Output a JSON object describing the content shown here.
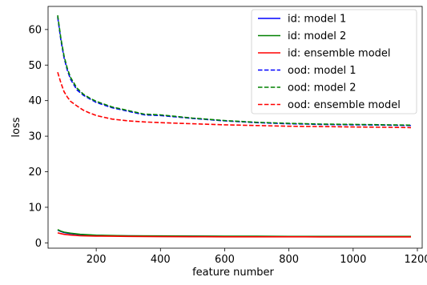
{
  "chart_data": {
    "type": "line",
    "title": "",
    "xlabel": "feature number",
    "ylabel": "loss",
    "xlim": [
      50,
      1215
    ],
    "ylim": [
      -1.5,
      66.5
    ],
    "xticks": [
      200,
      400,
      600,
      800,
      1000,
      1200
    ],
    "yticks": [
      0,
      10,
      20,
      30,
      40,
      50,
      60
    ],
    "grid": false,
    "legend_position": "upper right",
    "series": [
      {
        "name": "id: model 1",
        "style": "solid",
        "color": "#0000ff",
        "x": [
          80,
          90,
          100,
          120,
          150,
          200,
          250,
          300,
          400,
          500,
          600,
          700,
          800,
          900,
          1000,
          1100,
          1180
        ],
        "y": [
          3.6,
          3.2,
          2.9,
          2.6,
          2.3,
          2.1,
          2.0,
          1.95,
          1.9,
          1.85,
          1.8,
          1.8,
          1.8,
          1.78,
          1.78,
          1.78,
          1.78
        ]
      },
      {
        "name": "id: model 2",
        "style": "solid",
        "color": "#008000",
        "x": [
          80,
          90,
          100,
          120,
          150,
          200,
          250,
          300,
          400,
          500,
          600,
          700,
          800,
          900,
          1000,
          1100,
          1180
        ],
        "y": [
          3.7,
          3.3,
          3.0,
          2.7,
          2.4,
          2.15,
          2.05,
          2.0,
          1.95,
          1.9,
          1.85,
          1.85,
          1.82,
          1.8,
          1.8,
          1.8,
          1.8
        ]
      },
      {
        "name": "id: ensemble model",
        "style": "solid",
        "color": "#ff0000",
        "x": [
          80,
          90,
          100,
          120,
          150,
          200,
          250,
          300,
          400,
          500,
          600,
          700,
          800,
          900,
          1000,
          1100,
          1180
        ],
        "y": [
          2.8,
          2.6,
          2.4,
          2.2,
          2.0,
          1.9,
          1.85,
          1.8,
          1.75,
          1.72,
          1.7,
          1.7,
          1.7,
          1.68,
          1.68,
          1.68,
          1.68
        ]
      },
      {
        "name": "ood: model 1",
        "style": "dashed",
        "color": "#0000ff",
        "x": [
          80,
          90,
          100,
          110,
          120,
          140,
          160,
          180,
          200,
          250,
          300,
          350,
          400,
          500,
          600,
          700,
          800,
          900,
          1000,
          1100,
          1180
        ],
        "y": [
          63.5,
          57,
          52,
          48.5,
          46,
          43,
          41.5,
          40.5,
          39.5,
          38,
          37,
          36,
          35.8,
          35,
          34.3,
          33.8,
          33.5,
          33.3,
          33.2,
          33.1,
          33
        ]
      },
      {
        "name": "ood: model 2",
        "style": "dashed",
        "color": "#008000",
        "x": [
          80,
          90,
          100,
          110,
          120,
          140,
          160,
          180,
          200,
          250,
          300,
          350,
          400,
          500,
          600,
          700,
          800,
          900,
          1000,
          1100,
          1180
        ],
        "y": [
          64,
          57.5,
          52.5,
          49,
          46.5,
          43.5,
          41.8,
          40.7,
          39.8,
          38.2,
          37.2,
          36.2,
          36,
          35.1,
          34.4,
          33.9,
          33.6,
          33.4,
          33.3,
          33.2,
          33.1
        ]
      },
      {
        "name": "ood: ensemble model",
        "style": "dashed",
        "color": "#ff0000",
        "x": [
          80,
          90,
          100,
          110,
          120,
          140,
          160,
          180,
          200,
          250,
          300,
          350,
          400,
          500,
          600,
          700,
          800,
          900,
          1000,
          1100,
          1180
        ],
        "y": [
          48,
          45,
          42.5,
          41,
          39.8,
          38.5,
          37.3,
          36.5,
          35.8,
          34.8,
          34.3,
          34,
          33.8,
          33.5,
          33.2,
          33,
          32.8,
          32.7,
          32.6,
          32.5,
          32.4
        ]
      }
    ]
  }
}
